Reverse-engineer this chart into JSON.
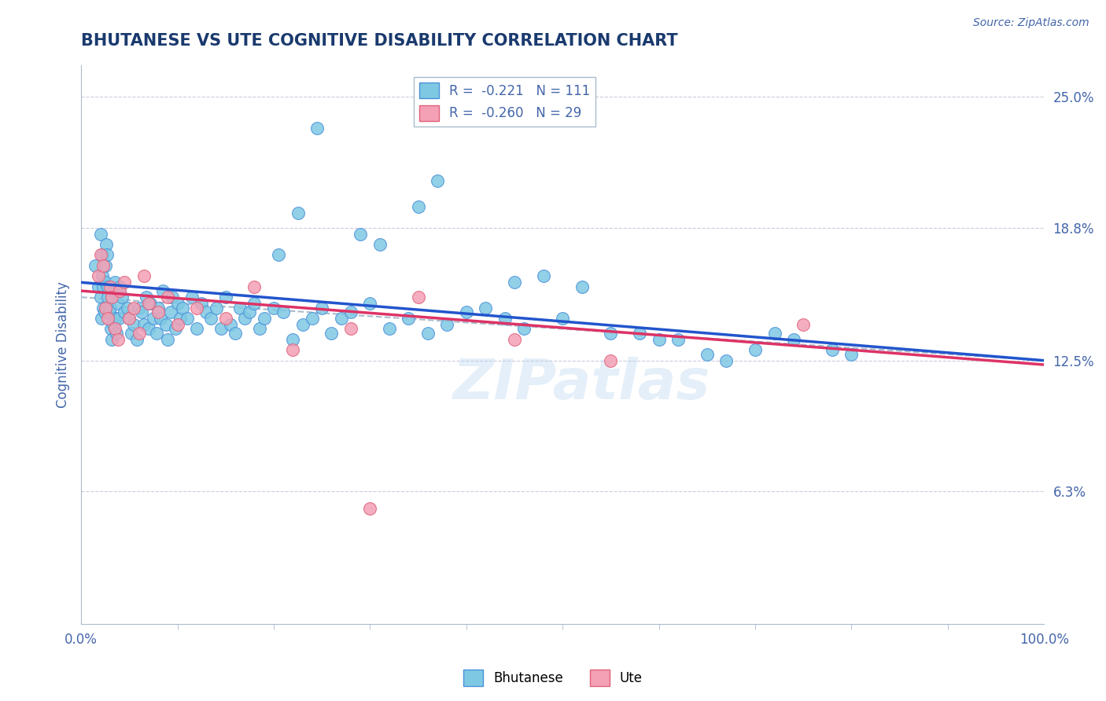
{
  "title": "BHUTANESE VS UTE COGNITIVE DISABILITY CORRELATION CHART",
  "source_text": "Source: ZipAtlas.com",
  "ylabel": "Cognitive Disability",
  "xlim": [
    0.0,
    100.0
  ],
  "ylim": [
    0.0,
    26.5
  ],
  "ytick_values": [
    6.3,
    12.5,
    18.8,
    25.0
  ],
  "xtick_labels": [
    "0.0%",
    "100.0%"
  ],
  "bhutanese_color": "#7ec8e3",
  "ute_color": "#f4a0b5",
  "bhutanese_edge": "#4a90d9",
  "ute_edge": "#e0607a",
  "blue_line_color": "#2255cc",
  "pink_line_color": "#dd3366",
  "dashed_line_color": "#aabbcc",
  "legend_R_blue": "R =  -0.221",
  "legend_N_blue": "N = 111",
  "legend_R_pink": "R =  -0.260",
  "legend_N_pink": "N = 29",
  "legend_label_blue": "Bhutanese",
  "legend_label_pink": "Ute",
  "watermark": "ZIPatlas",
  "background_color": "#ffffff",
  "grid_color": "#ccccdd",
  "title_color": "#1a3a6e",
  "axis_color": "#4466aa",
  "bhutanese_x": [
    1.5,
    1.8,
    2.0,
    2.0,
    2.1,
    2.2,
    2.2,
    2.3,
    2.3,
    2.4,
    2.5,
    2.5,
    2.6,
    2.7,
    2.8,
    2.8,
    2.9,
    3.0,
    3.1,
    3.2,
    3.3,
    3.4,
    3.5,
    3.6,
    3.7,
    3.8,
    3.9,
    4.0,
    4.2,
    4.5,
    4.8,
    5.0,
    5.2,
    5.5,
    5.8,
    6.0,
    6.3,
    6.5,
    6.8,
    7.0,
    7.2,
    7.5,
    7.8,
    8.0,
    8.2,
    8.5,
    8.8,
    9.0,
    9.3,
    9.5,
    9.8,
    10.0,
    10.3,
    10.5,
    11.0,
    11.5,
    12.0,
    12.5,
    13.0,
    13.5,
    14.0,
    14.5,
    15.0,
    15.5,
    16.0,
    16.5,
    17.0,
    17.5,
    18.0,
    18.5,
    19.0,
    20.0,
    21.0,
    22.0,
    23.0,
    24.0,
    25.0,
    26.0,
    27.0,
    28.0,
    30.0,
    32.0,
    34.0,
    36.0,
    38.0,
    40.0,
    42.0,
    44.0,
    46.0,
    50.0,
    55.0,
    58.0,
    60.0,
    62.0,
    65.0,
    67.0,
    70.0,
    72.0,
    74.0,
    78.0,
    80.0,
    45.0,
    48.0,
    52.0,
    35.0,
    37.0,
    29.0,
    31.0,
    20.5,
    22.5,
    24.5
  ],
  "bhutanese_y": [
    17.0,
    16.0,
    18.5,
    15.5,
    14.5,
    17.5,
    16.5,
    16.0,
    15.0,
    14.8,
    17.0,
    16.2,
    18.0,
    17.5,
    16.0,
    15.5,
    14.8,
    15.0,
    14.0,
    13.5,
    14.2,
    15.8,
    16.2,
    14.5,
    13.8,
    15.2,
    14.5,
    16.0,
    15.5,
    14.8,
    15.0,
    14.5,
    13.8,
    14.2,
    13.5,
    15.0,
    14.8,
    14.2,
    15.5,
    14.0,
    15.2,
    14.5,
    13.8,
    15.0,
    14.5,
    15.8,
    14.2,
    13.5,
    14.8,
    15.5,
    14.0,
    15.2,
    14.5,
    15.0,
    14.5,
    15.5,
    14.0,
    15.2,
    14.8,
    14.5,
    15.0,
    14.0,
    15.5,
    14.2,
    13.8,
    15.0,
    14.5,
    14.8,
    15.2,
    14.0,
    14.5,
    15.0,
    14.8,
    13.5,
    14.2,
    14.5,
    15.0,
    13.8,
    14.5,
    14.8,
    15.2,
    14.0,
    14.5,
    13.8,
    14.2,
    14.8,
    15.0,
    14.5,
    14.0,
    14.5,
    13.8,
    13.8,
    13.5,
    13.5,
    12.8,
    12.5,
    13.0,
    13.8,
    13.5,
    13.0,
    12.8,
    16.2,
    16.5,
    16.0,
    19.8,
    21.0,
    18.5,
    18.0,
    17.5,
    19.5,
    23.5
  ],
  "ute_x": [
    1.8,
    2.0,
    2.3,
    2.5,
    2.8,
    3.0,
    3.2,
    3.5,
    3.8,
    4.0,
    4.5,
    5.0,
    5.5,
    6.0,
    6.5,
    7.0,
    8.0,
    9.0,
    10.0,
    12.0,
    15.0,
    18.0,
    22.0,
    28.0,
    30.0,
    35.0,
    45.0,
    55.0,
    75.0
  ],
  "ute_y": [
    16.5,
    17.5,
    17.0,
    15.0,
    14.5,
    16.0,
    15.5,
    14.0,
    13.5,
    15.8,
    16.2,
    14.5,
    15.0,
    13.8,
    16.5,
    15.2,
    14.8,
    15.5,
    14.2,
    15.0,
    14.5,
    16.0,
    13.0,
    14.0,
    5.5,
    15.5,
    13.5,
    12.5,
    14.2
  ],
  "blue_trendline_x0": 0.0,
  "blue_trendline_y0": 16.2,
  "blue_trendline_x1": 100.0,
  "blue_trendline_y1": 12.5,
  "pink_trendline_x0": 0.0,
  "pink_trendline_y0": 15.8,
  "pink_trendline_x1": 100.0,
  "pink_trendline_y1": 12.3,
  "dashed_trendline_x0": 0.0,
  "dashed_trendline_y0": 15.5,
  "dashed_trendline_x1": 100.0,
  "dashed_trendline_y1": 12.5
}
